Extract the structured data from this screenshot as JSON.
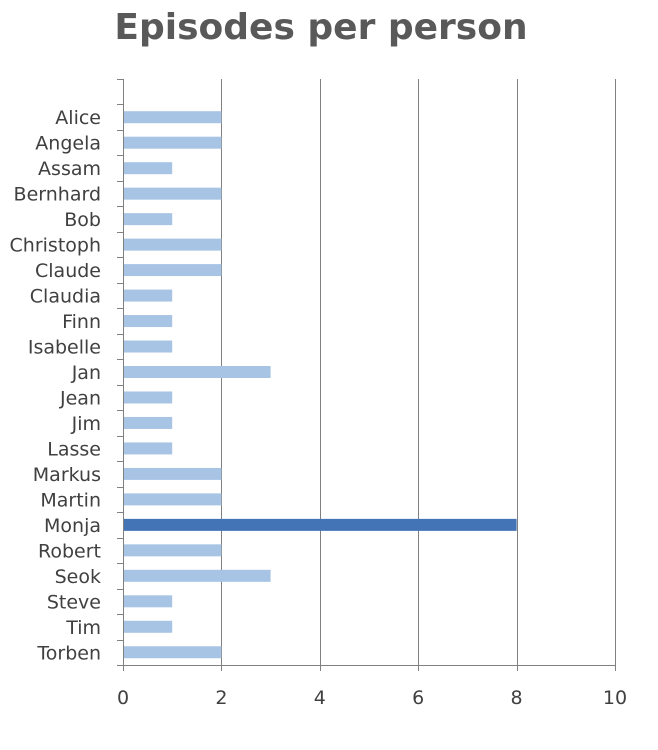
{
  "chart_data": {
    "type": "bar",
    "orientation": "horizontal",
    "title": "Episodes per person",
    "xlabel": "",
    "ylabel": "",
    "categories": [
      "Alice",
      "Angela",
      "Assam",
      "Bernhard",
      "Bob",
      "Christoph",
      "Claude",
      "Claudia",
      "Finn",
      "Isabelle",
      "Jan",
      "Jean",
      "Jim",
      "Lasse",
      "Markus",
      "Martin",
      "Monja",
      "Robert",
      "Seok",
      "Steve",
      "Tim",
      "Torben"
    ],
    "values": [
      2,
      2,
      1,
      2,
      1,
      2,
      2,
      1,
      1,
      1,
      3,
      1,
      1,
      1,
      2,
      2,
      8,
      2,
      3,
      1,
      1,
      2
    ],
    "xlim": [
      0,
      10
    ],
    "xticks": [
      "0",
      "2",
      "4",
      "6",
      "8",
      "10"
    ],
    "grid": "vertical",
    "legend": "none",
    "colors": {
      "bar": "#a8c4e5",
      "highlight": "#4374b6",
      "title": "#595959",
      "labels": "#404040",
      "grid": "#808080"
    },
    "highlighted_category": "Monja"
  }
}
